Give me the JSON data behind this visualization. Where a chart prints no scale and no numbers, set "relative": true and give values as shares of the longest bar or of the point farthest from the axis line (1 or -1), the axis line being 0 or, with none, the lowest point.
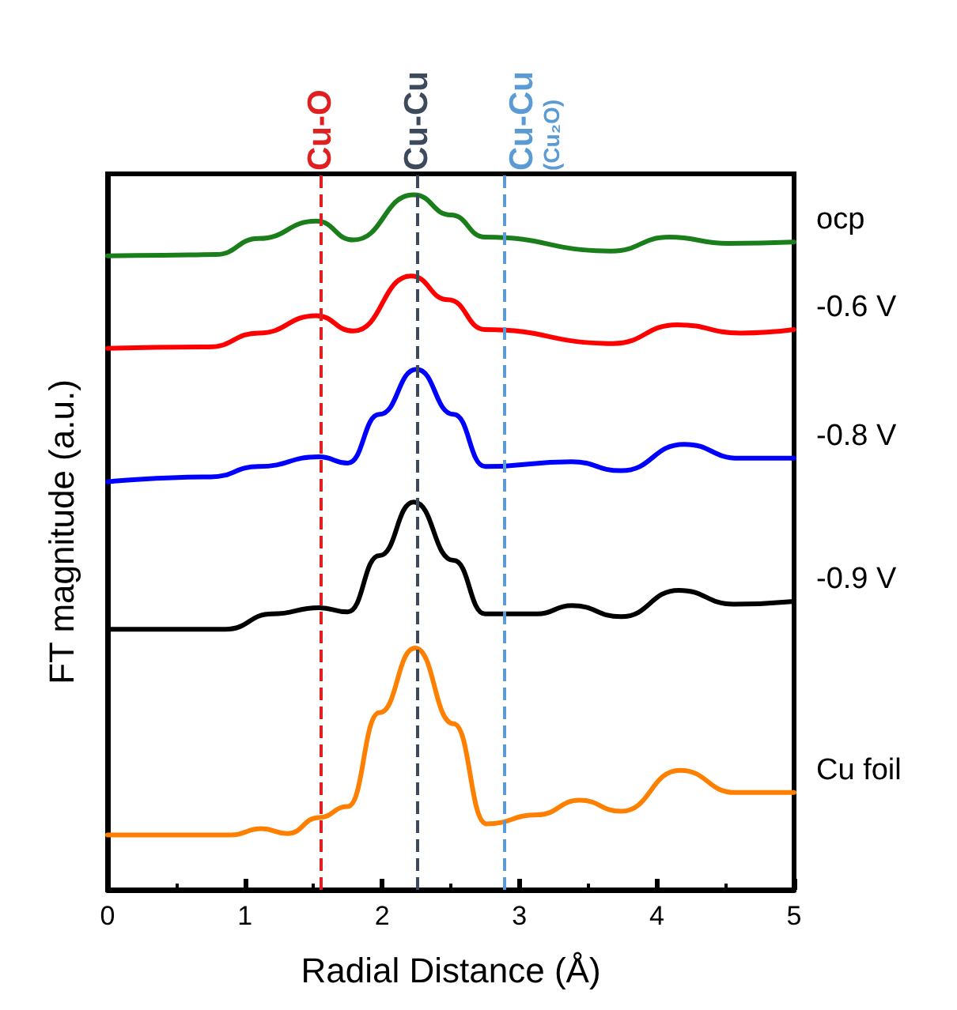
{
  "chart_data": {
    "type": "line",
    "xlabel": "Radial Distance (Å)",
    "ylabel": "FT magnitude (a.u.)",
    "relative": true,
    "xlim": [
      0,
      5
    ],
    "xticks": [
      0,
      1,
      2,
      3,
      4,
      5
    ],
    "grid": false,
    "legend": false,
    "marker": "none",
    "line_style": "solid",
    "series": [
      {
        "name": "ocp",
        "color": "#1a7f1a",
        "x": [
          0,
          0.4,
          0.79,
          1.1,
          1.52,
          1.79,
          2.23,
          2.5,
          2.75,
          3.67,
          4.09,
          4.52,
          5
        ],
        "values": [
          0.912,
          0.913,
          0.914,
          0.937,
          0.962,
          0.935,
          1.0,
          0.971,
          0.939,
          0.919,
          0.939,
          0.93,
          0.932
        ]
      },
      {
        "name": "-0.6 V",
        "color": "#ff0000",
        "x": [
          0,
          0.74,
          1.1,
          1.52,
          1.79,
          2.21,
          2.48,
          2.75,
          3.68,
          4.15,
          4.61,
          5
        ],
        "values": [
          0.779,
          0.781,
          0.801,
          0.826,
          0.804,
          0.883,
          0.849,
          0.806,
          0.786,
          0.813,
          0.801,
          0.806
        ]
      },
      {
        "name": "-0.8 V",
        "color": "#0000ff",
        "x": [
          0,
          0.75,
          1.1,
          1.54,
          1.75,
          1.98,
          2.25,
          2.52,
          2.75,
          3.38,
          3.74,
          4.2,
          4.6,
          5
        ],
        "values": [
          0.587,
          0.594,
          0.609,
          0.623,
          0.614,
          0.684,
          0.749,
          0.684,
          0.609,
          0.616,
          0.603,
          0.641,
          0.621,
          0.621
        ]
      },
      {
        "name": "-0.9 V",
        "color": "#000000",
        "x": [
          0,
          0.86,
          1.2,
          1.54,
          1.75,
          1.98,
          2.23,
          2.52,
          2.75,
          3.13,
          3.38,
          3.74,
          4.16,
          4.56,
          5
        ],
        "values": [
          0.375,
          0.375,
          0.397,
          0.406,
          0.4,
          0.481,
          0.558,
          0.474,
          0.397,
          0.397,
          0.409,
          0.393,
          0.431,
          0.411,
          0.415
        ]
      },
      {
        "name": "Cu foil",
        "color": "#ff8000",
        "x": [
          0,
          0.9,
          1.12,
          1.31,
          1.54,
          1.75,
          1.98,
          2.24,
          2.52,
          2.76,
          3.13,
          3.44,
          3.74,
          4.17,
          4.57,
          5
        ],
        "values": [
          0.079,
          0.079,
          0.088,
          0.081,
          0.104,
          0.12,
          0.255,
          0.348,
          0.239,
          0.095,
          0.108,
          0.129,
          0.113,
          0.172,
          0.14,
          0.14
        ]
      }
    ],
    "ref_lines": [
      {
        "axis": "x",
        "value": 1.55,
        "label": "Cu-O",
        "color": "#e02020",
        "line_style": "dashed"
      },
      {
        "axis": "x",
        "value": 2.25,
        "label": "Cu-Cu",
        "color": "#3d4a5c",
        "line_style": "dashed"
      },
      {
        "axis": "x",
        "value": 2.89,
        "label": "Cu-Cu (Cu₂O)",
        "color": "#5b9bd5",
        "line_style": "dashed"
      }
    ]
  }
}
